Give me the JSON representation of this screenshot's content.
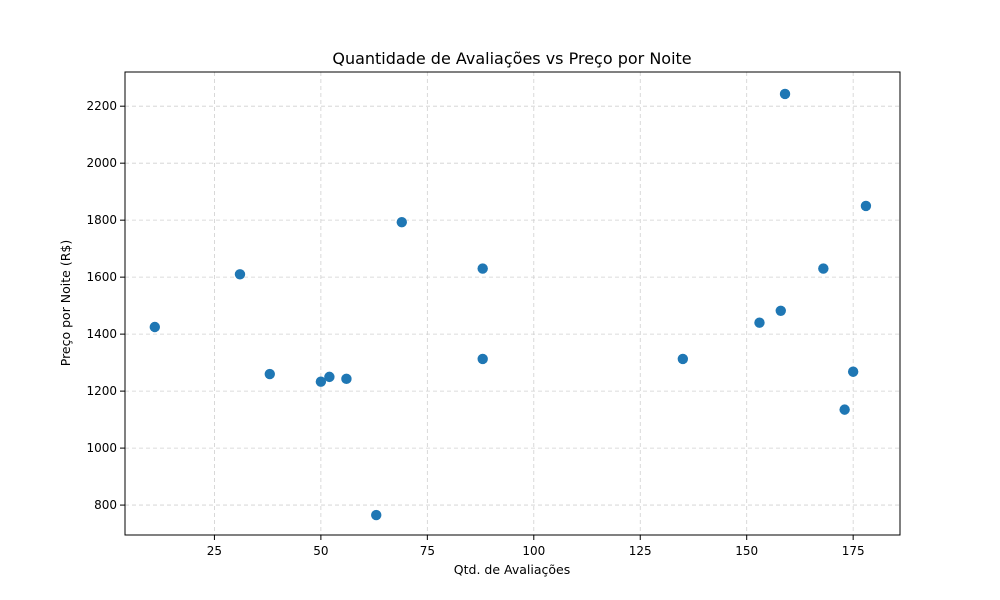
{
  "chart_data": {
    "type": "scatter",
    "title": "Quantidade de Avaliações vs Preço por Noite",
    "xlabel": "Qtd. de Avaliações",
    "ylabel": "Preço por Noite (R$)",
    "xlim": [
      4,
      186
    ],
    "ylim": [
      695,
      2320
    ],
    "xticks": [
      25,
      50,
      75,
      100,
      125,
      150,
      175
    ],
    "yticks": [
      800,
      1000,
      1200,
      1400,
      1600,
      1800,
      2000,
      2200
    ],
    "grid": true,
    "color": "#1f77b4",
    "points": [
      {
        "x": 11,
        "y": 1425
      },
      {
        "x": 31,
        "y": 1610
      },
      {
        "x": 38,
        "y": 1260
      },
      {
        "x": 50,
        "y": 1233
      },
      {
        "x": 52,
        "y": 1250
      },
      {
        "x": 56,
        "y": 1243
      },
      {
        "x": 63,
        "y": 765
      },
      {
        "x": 69,
        "y": 1793
      },
      {
        "x": 88,
        "y": 1630
      },
      {
        "x": 88,
        "y": 1313
      },
      {
        "x": 135,
        "y": 1313
      },
      {
        "x": 153,
        "y": 1440
      },
      {
        "x": 158,
        "y": 1482
      },
      {
        "x": 159,
        "y": 2243
      },
      {
        "x": 168,
        "y": 1630
      },
      {
        "x": 173,
        "y": 1135
      },
      {
        "x": 175,
        "y": 1268
      },
      {
        "x": 178,
        "y": 1850
      }
    ]
  }
}
